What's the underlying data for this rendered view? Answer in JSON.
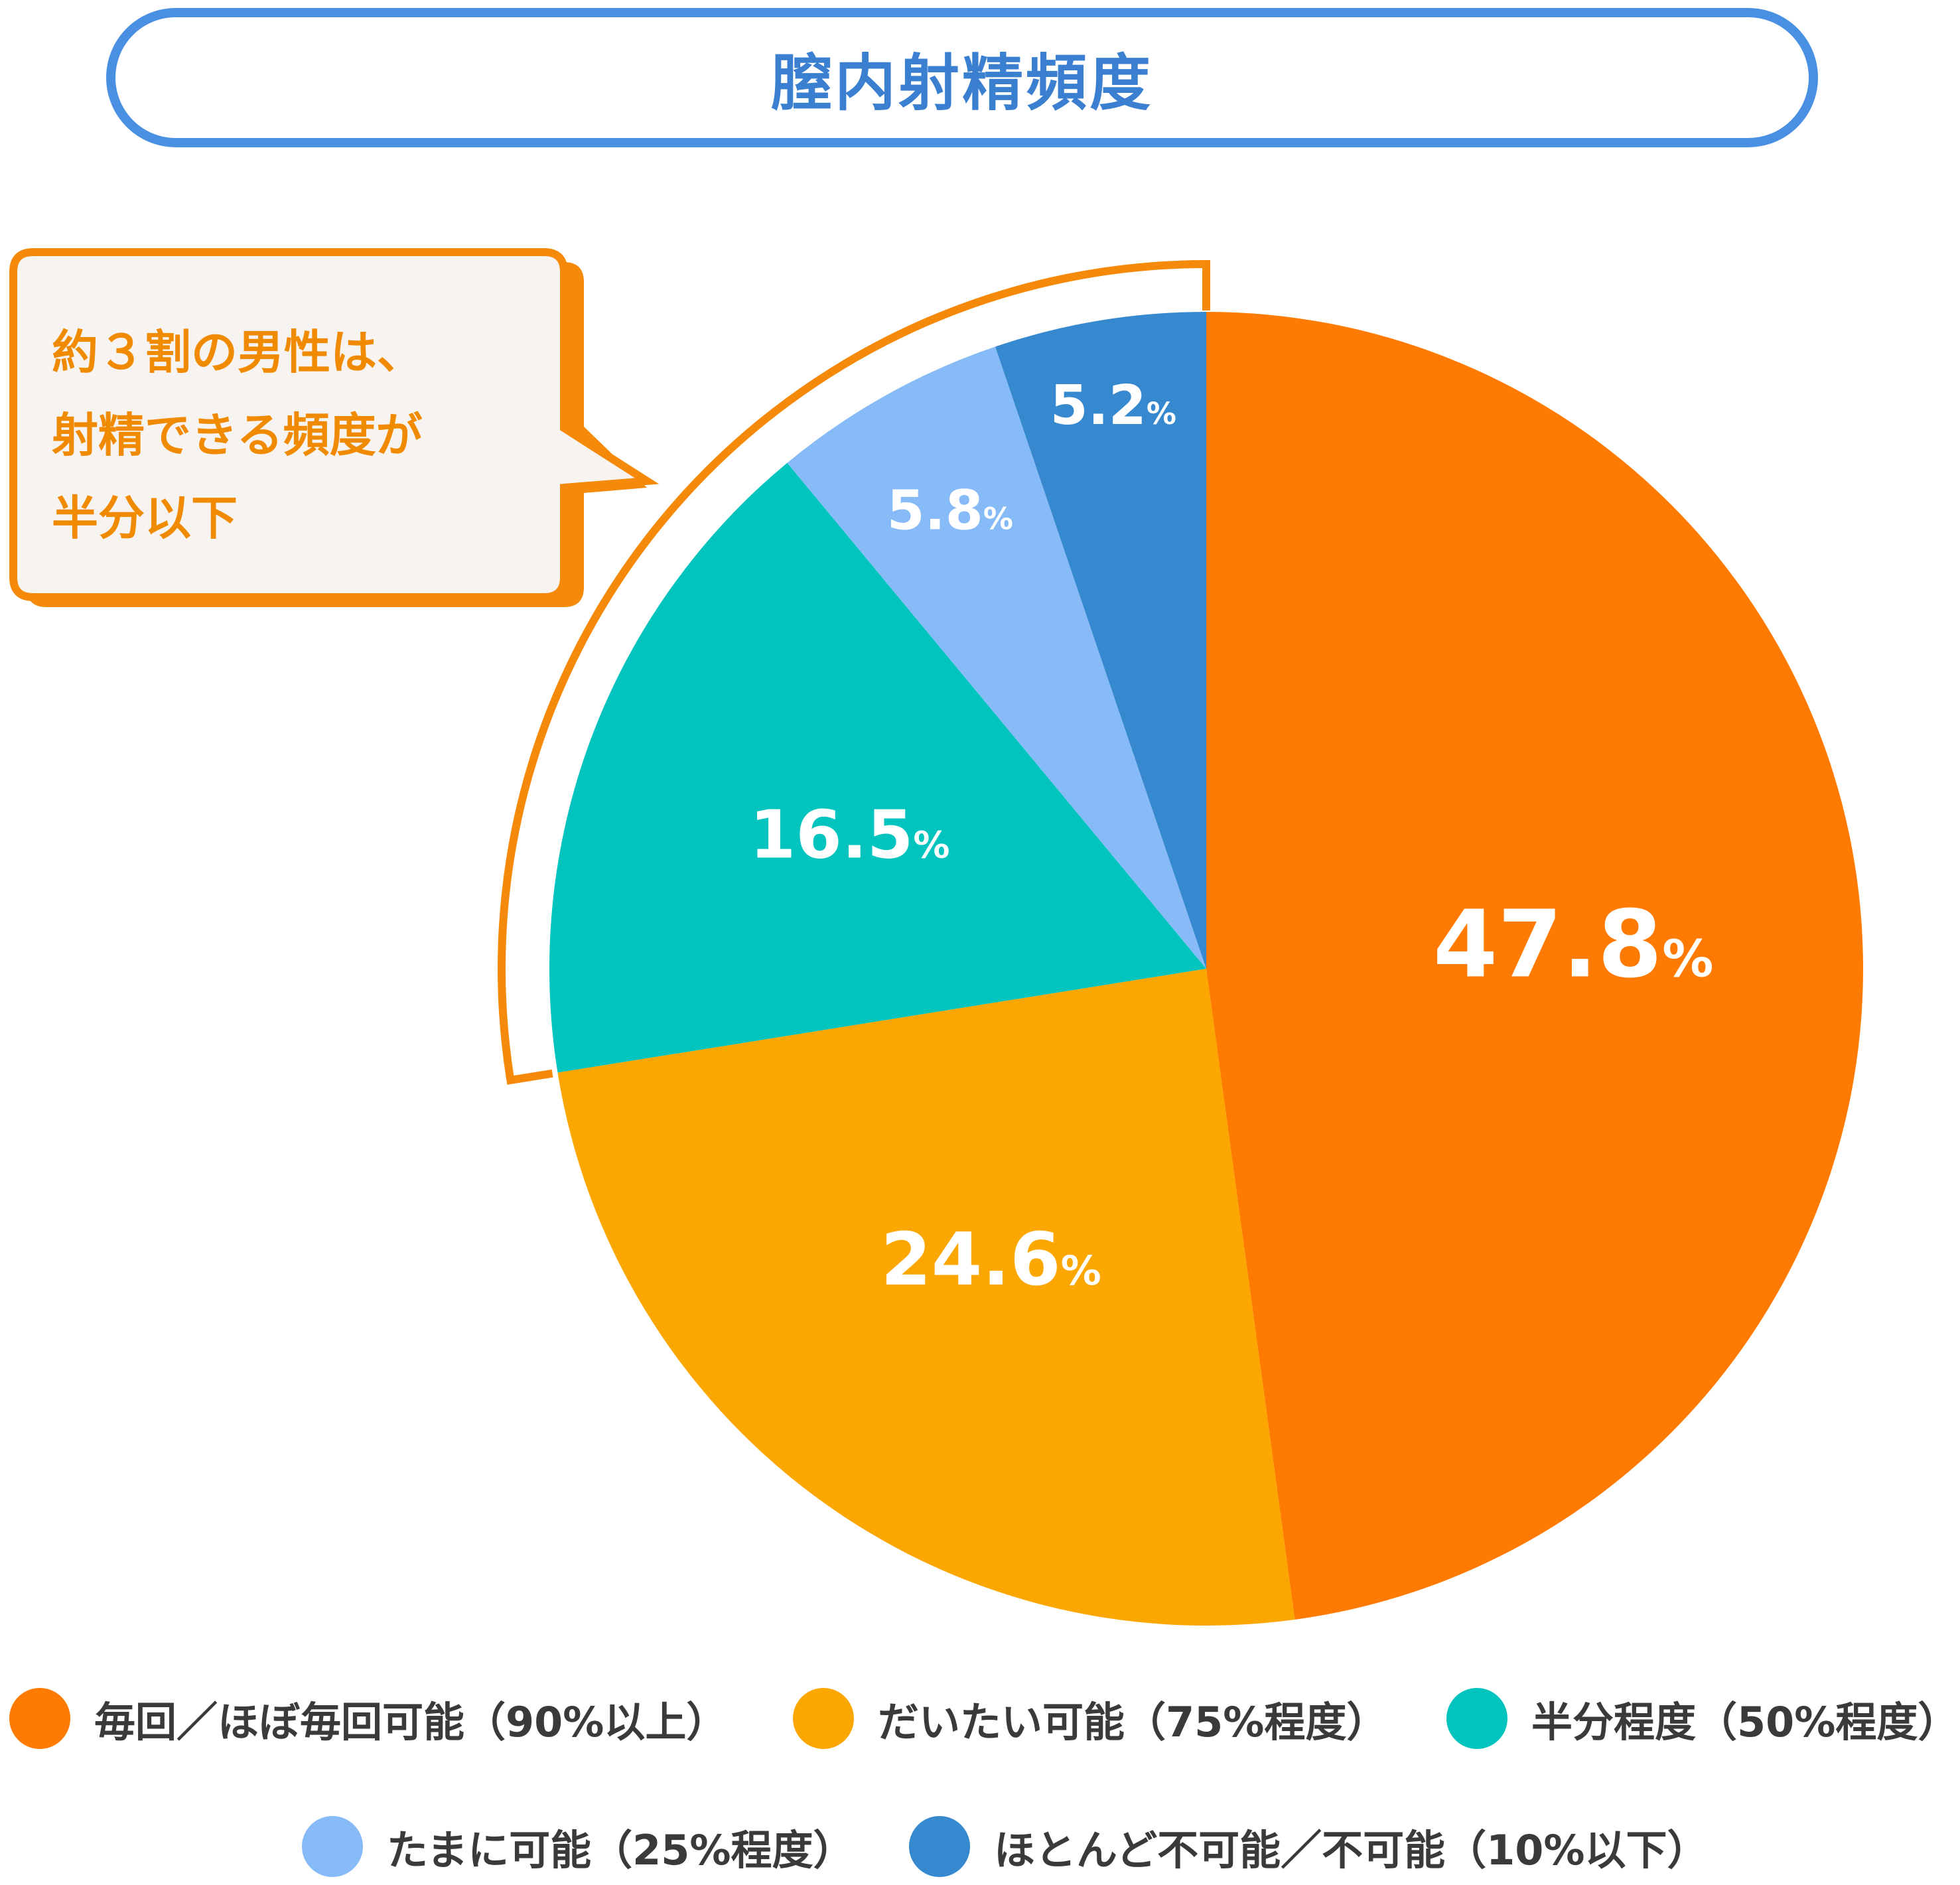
{
  "title": "膣内射精頻度",
  "callout": {
    "lines": [
      "約３割の男性は、",
      "射精できる頻度が",
      "半分以下"
    ]
  },
  "colors": {
    "title_border": "#4a90e2",
    "callout_border": "#f58a0a",
    "callout_bg": "#f7f3f0"
  },
  "chart_data": {
    "type": "pie",
    "title": "膣内射精頻度",
    "start": "12 o'clock, clockwise",
    "slices": [
      {
        "name": "毎回／ほぼ毎回可能（90%以上）",
        "value": 47.8,
        "label": "47.8",
        "color": "#ff7a00"
      },
      {
        "name": "だいたい可能（75%程度）",
        "value": 24.6,
        "label": "24.6",
        "color": "#fca600"
      },
      {
        "name": "半分程度（50%程度）",
        "value": 16.5,
        "label": "16.5",
        "color": "#00c4bd"
      },
      {
        "name": "たまに可能（25%程度）",
        "value": 5.8,
        "label": "5.8",
        "color": "#86bbf8"
      },
      {
        "name": "ほとんど不可能／不可能（10%以下）",
        "value": 5.2,
        "label": "5.2",
        "color": "#3789cf"
      }
    ],
    "unit": "%",
    "legend_position": "bottom"
  }
}
